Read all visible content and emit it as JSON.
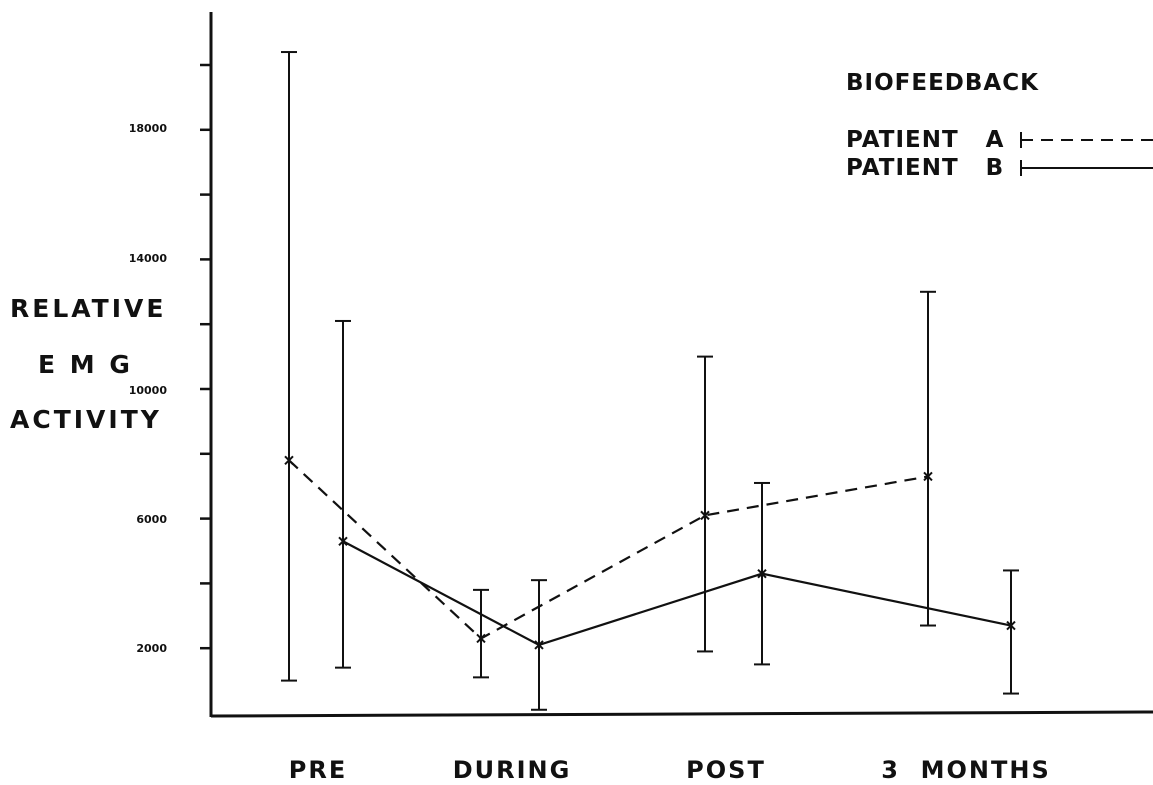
{
  "chart_data": {
    "type": "line",
    "legend_title": "BIOFEEDBACK",
    "legend_position": "top-right",
    "ylabel_lines": [
      "RELATIVE",
      "E M G",
      "ACTIVITY"
    ],
    "xlabel": "",
    "categories": [
      "PRE",
      "DURING",
      "POST",
      "3  MONTHS"
    ],
    "y_tick_labels": [
      2000,
      6000,
      10000,
      14000,
      18000
    ],
    "ylim": [
      0,
      20000
    ],
    "grid": false,
    "series": [
      {
        "name": "PATIENT   A",
        "line_style": "dashed",
        "values": [
          7800,
          2300,
          6100,
          7300
        ],
        "error_low": [
          1000,
          1100,
          1900,
          2700
        ],
        "error_high": [
          20400,
          3800,
          11000,
          13000
        ]
      },
      {
        "name": "PATIENT   B",
        "line_style": "solid",
        "values": [
          5300,
          2100,
          4300,
          2700
        ],
        "error_low": [
          1400,
          100,
          1500,
          600
        ],
        "error_high": [
          12100,
          4100,
          7100,
          4400
        ]
      }
    ]
  }
}
